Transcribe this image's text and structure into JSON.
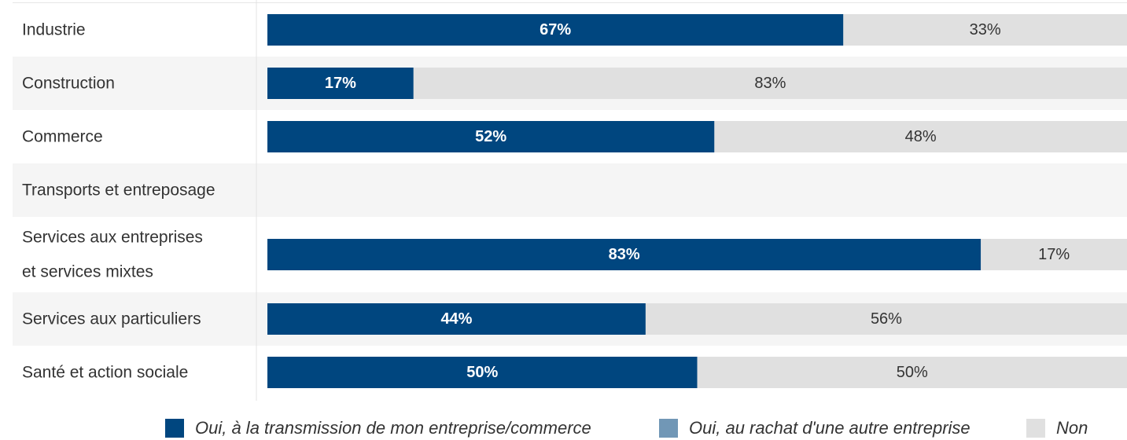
{
  "chart_data": {
    "type": "bar",
    "orientation": "horizontal",
    "stacked": true,
    "percent_stacked": true,
    "categories": [
      "Industrie",
      "Construction",
      "Commerce",
      "Transports et entreposage",
      "Services aux entreprises et services mixtes",
      "Services aux particuliers",
      "Santé et action sociale"
    ],
    "category_lines": [
      [
        "Industrie"
      ],
      [
        "Construction"
      ],
      [
        "Commerce"
      ],
      [
        "Transports et entreposage"
      ],
      [
        "Services aux entreprises",
        "et services mixtes"
      ],
      [
        "Services aux particuliers"
      ],
      [
        "Santé et action sociale"
      ]
    ],
    "series": [
      {
        "name": "Oui, à la transmission de mon entreprise/commerce",
        "color": "#00467F",
        "values": [
          67,
          17,
          52,
          null,
          83,
          44,
          50
        ],
        "labels": [
          "67%",
          "17%",
          "52%",
          "",
          "83%",
          "44%",
          "50%"
        ]
      },
      {
        "name": "Oui, au rachat d'une autre entreprise",
        "color": "#7197B6",
        "values": [
          0,
          0,
          0,
          null,
          0,
          0,
          0
        ],
        "labels": [
          "",
          "",
          "",
          "",
          "",
          "",
          ""
        ]
      },
      {
        "name": "Non",
        "color": "#E0E0E0",
        "values": [
          33,
          83,
          48,
          null,
          17,
          56,
          50
        ],
        "labels": [
          "33%",
          "83%",
          "48%",
          "",
          "17%",
          "56%",
          "50%"
        ]
      }
    ],
    "xlim": [
      0,
      100
    ],
    "grid": false,
    "legend_position": "bottom",
    "row_band_colors": [
      "#ffffff",
      "#f5f5f5"
    ],
    "title": "",
    "xlabel": "",
    "ylabel": ""
  }
}
